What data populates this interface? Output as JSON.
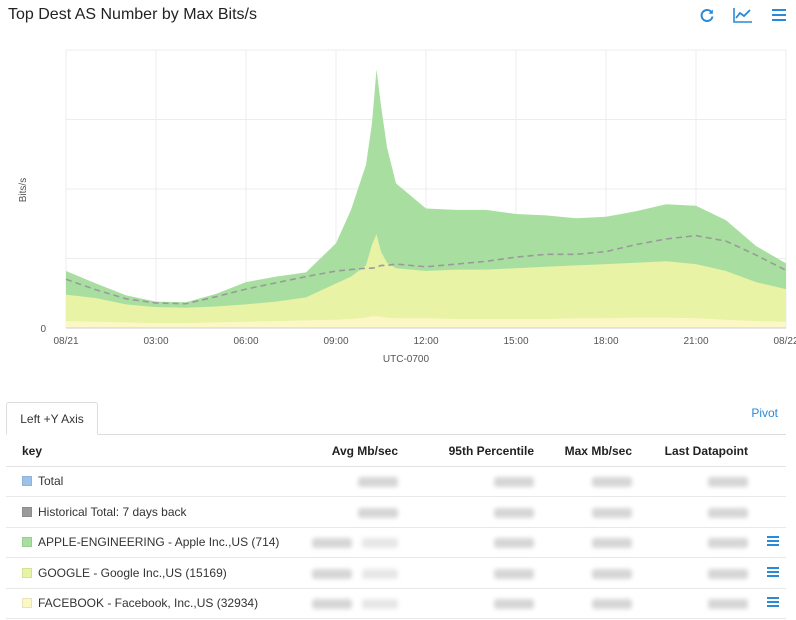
{
  "header": {
    "title": "Top Dest AS Number by Max Bits/s",
    "icons": [
      "refresh-icon",
      "line-chart-icon",
      "menu-icon"
    ],
    "accent": "#2a8ad6"
  },
  "chart_data": {
    "type": "area",
    "ylabel": "Bits/s",
    "xlabel": "UTC-0700",
    "x_ticks": [
      "08/21",
      "03:00",
      "06:00",
      "09:00",
      "12:00",
      "15:00",
      "18:00",
      "21:00",
      "08/22"
    ],
    "y_ticks": [
      "0",
      "",
      "",
      "",
      ""
    ],
    "x_range_hours": [
      0,
      24
    ],
    "ylim": [
      0,
      4
    ],
    "grid": true,
    "x": [
      0,
      1,
      2,
      3,
      4,
      5,
      6,
      7,
      8,
      9,
      9.5,
      10,
      10.2,
      10.35,
      10.5,
      10.7,
      11,
      12,
      13,
      14,
      15,
      16,
      17,
      18,
      19,
      20,
      21,
      22,
      23,
      24
    ],
    "series": [
      {
        "color": "#a8dfa0",
        "values": [
          0.82,
          0.64,
          0.47,
          0.38,
          0.37,
          0.49,
          0.66,
          0.74,
          0.8,
          1.22,
          1.7,
          2.35,
          2.95,
          3.72,
          3.2,
          2.6,
          2.08,
          1.72,
          1.7,
          1.7,
          1.64,
          1.62,
          1.58,
          1.6,
          1.68,
          1.78,
          1.76,
          1.55,
          1.18,
          0.93
        ]
      },
      {
        "color": "#e8f3a6",
        "values": [
          0.48,
          0.43,
          0.34,
          0.3,
          0.29,
          0.31,
          0.34,
          0.38,
          0.44,
          0.64,
          0.74,
          0.9,
          1.2,
          1.35,
          1.1,
          0.94,
          0.86,
          0.82,
          0.84,
          0.84,
          0.86,
          0.88,
          0.9,
          0.92,
          0.94,
          0.96,
          0.92,
          0.82,
          0.66,
          0.56
        ]
      },
      {
        "color": "#fbf8c6",
        "values": [
          0.1,
          0.09,
          0.08,
          0.07,
          0.07,
          0.08,
          0.09,
          0.1,
          0.11,
          0.12,
          0.13,
          0.15,
          0.17,
          0.17,
          0.16,
          0.15,
          0.14,
          0.14,
          0.13,
          0.13,
          0.13,
          0.13,
          0.14,
          0.14,
          0.15,
          0.15,
          0.14,
          0.12,
          0.1,
          0.09
        ]
      }
    ],
    "historical_line": {
      "style": "dashed",
      "color": "#9a9a9a",
      "values": [
        0.7,
        0.55,
        0.42,
        0.36,
        0.35,
        0.45,
        0.56,
        0.65,
        0.74,
        0.82,
        0.84,
        0.86,
        0.86,
        0.87,
        0.9,
        0.9,
        0.92,
        0.88,
        0.92,
        0.96,
        1.02,
        1.06,
        1.06,
        1.1,
        1.2,
        1.28,
        1.33,
        1.25,
        1.05,
        0.83
      ]
    }
  },
  "tabs": {
    "active": "Left +Y Axis",
    "pivot": "Pivot"
  },
  "table": {
    "columns": [
      "key",
      "Avg Mb/sec",
      "95th Percentile",
      "Max Mb/sec",
      "Last Datapoint"
    ],
    "rows": [
      {
        "label": "Total",
        "swatch": "#9cc2ea"
      },
      {
        "label": "Historical Total: 7 days back",
        "swatch": "#9a9a9a"
      },
      {
        "label": "APPLE-ENGINEERING - Apple Inc.,US (714)",
        "swatch": "#a8dfa0"
      },
      {
        "label": "GOOGLE - Google Inc.,US (15169)",
        "swatch": "#e8f3a6"
      },
      {
        "label": "FACEBOOK - Facebook, Inc.,US (32934)",
        "swatch": "#fbf8c6"
      }
    ]
  }
}
